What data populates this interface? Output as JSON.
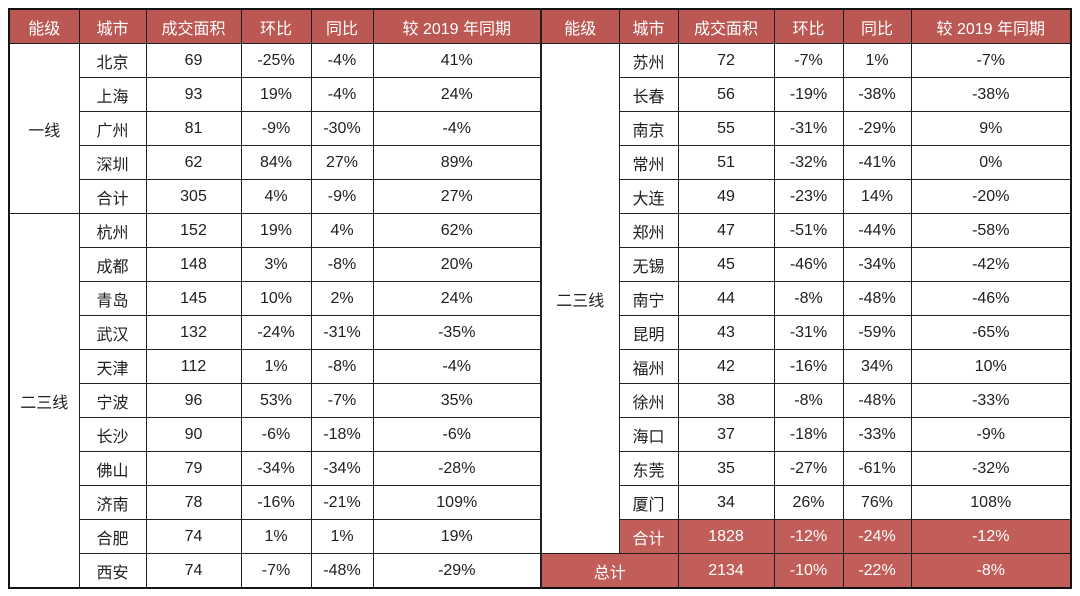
{
  "colors": {
    "header_bg": "#BC5853",
    "total_bg": "#C25E59",
    "header_text": "#FFFFFF",
    "body_text": "#202020",
    "border": "#1F1F1F"
  },
  "chart_data": {
    "type": "table",
    "columns": [
      "能级",
      "城市",
      "成交面积",
      "环比",
      "同比",
      "较 2019 年同期"
    ],
    "left_table": {
      "groups": [
        {
          "tier": "一线",
          "rows": [
            [
              "北京",
              "69",
              "-25%",
              "-4%",
              "41%"
            ],
            [
              "上海",
              "93",
              "19%",
              "-4%",
              "24%"
            ],
            [
              "广州",
              "81",
              "-9%",
              "-30%",
              "-4%"
            ],
            [
              "深圳",
              "62",
              "84%",
              "27%",
              "89%"
            ],
            [
              "合计",
              "305",
              "4%",
              "-9%",
              "27%"
            ]
          ]
        },
        {
          "tier": "二三线",
          "rows": [
            [
              "杭州",
              "152",
              "19%",
              "4%",
              "62%"
            ],
            [
              "成都",
              "148",
              "3%",
              "-8%",
              "20%"
            ],
            [
              "青岛",
              "145",
              "10%",
              "2%",
              "24%"
            ],
            [
              "武汉",
              "132",
              "-24%",
              "-31%",
              "-35%"
            ],
            [
              "天津",
              "112",
              "1%",
              "-8%",
              "-4%"
            ],
            [
              "宁波",
              "96",
              "53%",
              "-7%",
              "35%"
            ],
            [
              "长沙",
              "90",
              "-6%",
              "-18%",
              "-6%"
            ],
            [
              "佛山",
              "79",
              "-34%",
              "-34%",
              "-28%"
            ],
            [
              "济南",
              "78",
              "-16%",
              "-21%",
              "109%"
            ],
            [
              "合肥",
              "74",
              "1%",
              "1%",
              "19%"
            ],
            [
              "西安",
              "74",
              "-7%",
              "-48%",
              "-29%"
            ]
          ]
        }
      ]
    },
    "right_table": {
      "tier": "二三线",
      "rows": [
        [
          "苏州",
          "72",
          "-7%",
          "1%",
          "-7%"
        ],
        [
          "长春",
          "56",
          "-19%",
          "-38%",
          "-38%"
        ],
        [
          "南京",
          "55",
          "-31%",
          "-29%",
          "9%"
        ],
        [
          "常州",
          "51",
          "-32%",
          "-41%",
          "0%"
        ],
        [
          "大连",
          "49",
          "-23%",
          "14%",
          "-20%"
        ],
        [
          "郑州",
          "47",
          "-51%",
          "-44%",
          "-58%"
        ],
        [
          "无锡",
          "45",
          "-46%",
          "-34%",
          "-42%"
        ],
        [
          "南宁",
          "44",
          "-8%",
          "-48%",
          "-46%"
        ],
        [
          "昆明",
          "43",
          "-31%",
          "-59%",
          "-65%"
        ],
        [
          "福州",
          "42",
          "-16%",
          "34%",
          "10%"
        ],
        [
          "徐州",
          "38",
          "-8%",
          "-48%",
          "-33%"
        ],
        [
          "海口",
          "37",
          "-18%",
          "-33%",
          "-9%"
        ],
        [
          "东莞",
          "35",
          "-27%",
          "-61%",
          "-32%"
        ],
        [
          "厦门",
          "34",
          "26%",
          "76%",
          "108%"
        ]
      ],
      "subtotal": [
        "合计",
        "1828",
        "-12%",
        "-24%",
        "-12%"
      ],
      "grand_total": [
        "总计",
        "2134",
        "-10%",
        "-22%",
        "-8%"
      ]
    }
  }
}
